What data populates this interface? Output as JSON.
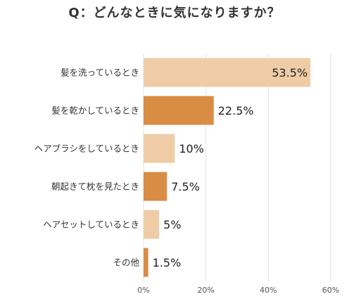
{
  "chart_data": {
    "type": "bar",
    "orientation": "horizontal",
    "title": "Q：どんなときに気になりますか？",
    "categories": [
      "髪を洗っているとき",
      "髪を乾かしているとき",
      "ヘアブラシをしているとき",
      "朝起きて枕を見たとき",
      "ヘアセットしているとき",
      "その他"
    ],
    "values": [
      53.5,
      22.5,
      10,
      7.5,
      5,
      1.5
    ],
    "value_labels": [
      "53.5%",
      "22.5%",
      "10%",
      "7.5%",
      "5%",
      "1.5%"
    ],
    "xlim": [
      0,
      60
    ],
    "x_ticks": [
      0,
      20,
      40,
      60
    ],
    "x_tick_labels": [
      "0%",
      "20%",
      "40%",
      "60%"
    ],
    "grid": true,
    "legend": "none",
    "colors": {
      "light": "#efcca6",
      "dark": "#d98c44",
      "grid": "#e3e3e3",
      "text": "#333333"
    },
    "bar_colors": [
      "light",
      "dark",
      "light",
      "dark",
      "light",
      "dark"
    ]
  }
}
